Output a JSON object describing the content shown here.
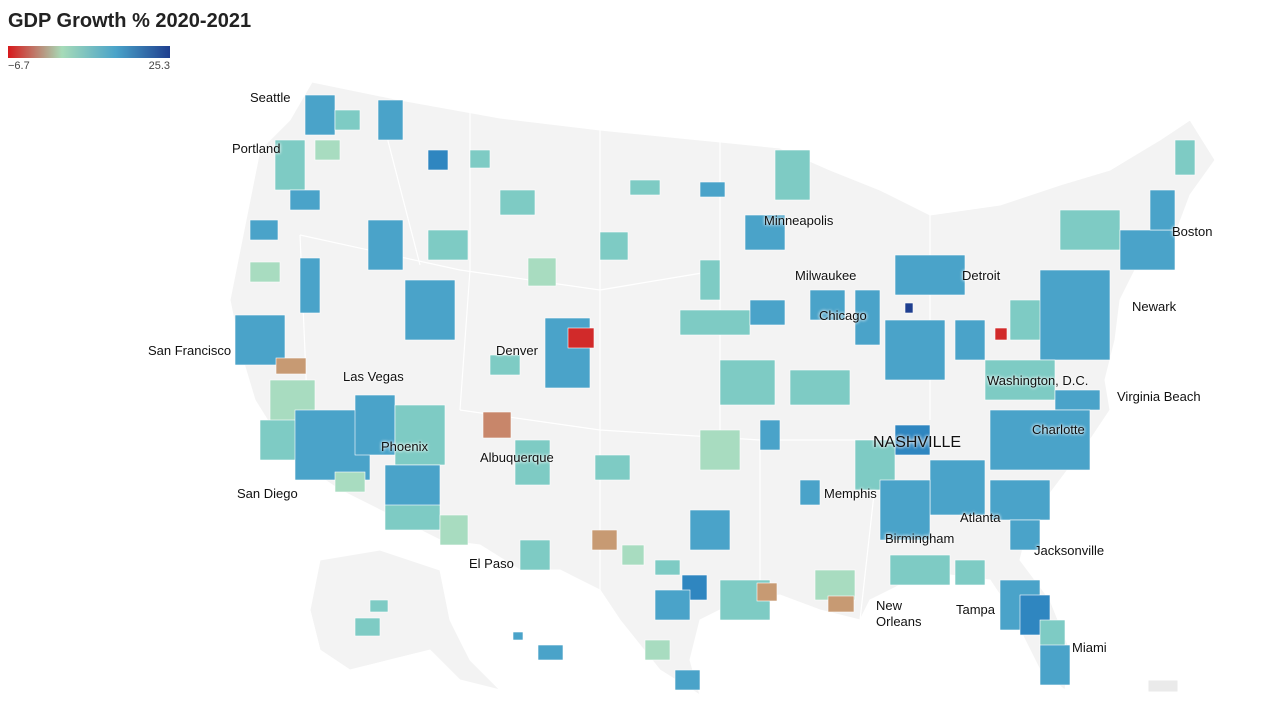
{
  "title": "GDP Growth % 2020-2021",
  "legend": {
    "min": {
      "value": -6.7,
      "label": "−6.7"
    },
    "max": 25.3,
    "colors": [
      "#d7191c",
      "#a6dbb8",
      "#4aa3c9",
      "#1f3f8f"
    ]
  },
  "cities": [
    "Seattle",
    "Portland",
    "San Francisco",
    "Las Vegas",
    "San Diego",
    "Phoenix",
    "Denver",
    "Albuquerque",
    "El Paso",
    "Minneapolis",
    "Milwaukee",
    "Chicago",
    "Detroit",
    "Boston",
    "Newark",
    "Washington, D.C.",
    "Virginia Beach",
    "Charlotte",
    "NASHVILLE",
    "Memphis",
    "Atlanta",
    "Birmingham",
    "Jacksonville",
    "New Orleans",
    "Tampa",
    "Miami"
  ]
}
